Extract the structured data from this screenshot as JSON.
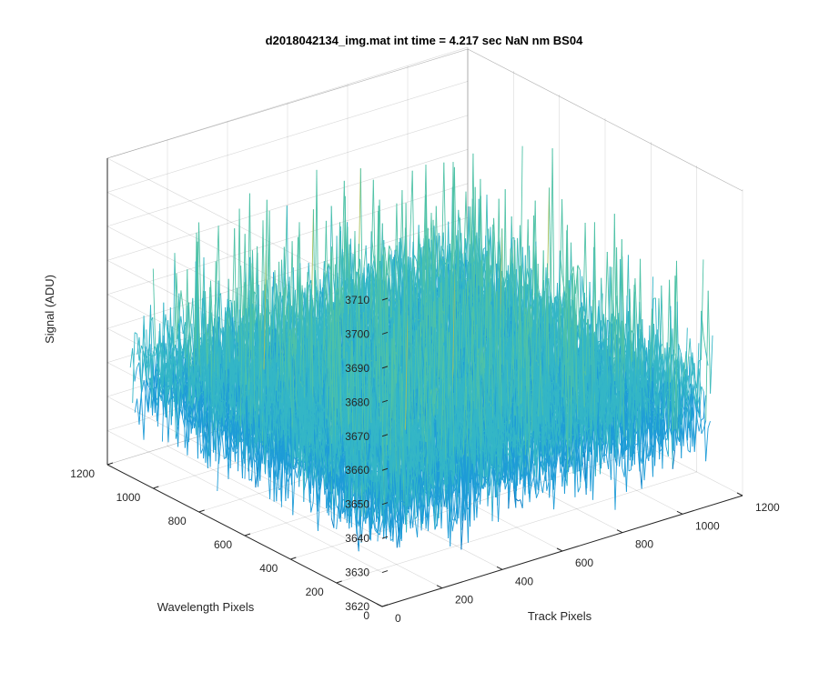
{
  "chart_data": {
    "type": "surface3d",
    "title": "d2018042134_img.mat int time = 4.217 sec  NaN nm BS04",
    "xlabel": "Track Pixels",
    "ylabel": "Wavelength Pixels",
    "zlabel": "Signal (ADU)",
    "xlim": [
      0,
      1200
    ],
    "ylim": [
      0,
      1200
    ],
    "zlim": [
      3620,
      3710
    ],
    "x_ticks": [
      "0",
      "200",
      "400",
      "600",
      "800",
      "1000",
      "1200"
    ],
    "y_ticks": [
      "0",
      "200",
      "400",
      "600",
      "800",
      "1000",
      "1200"
    ],
    "z_ticks": [
      "3620",
      "3630",
      "3640",
      "3650",
      "3660",
      "3670",
      "3680",
      "3690",
      "3700",
      "3710"
    ],
    "data_extent": {
      "x": [
        0,
        1100
      ],
      "y": [
        0,
        1100
      ]
    },
    "signal_mean": 3650,
    "signal_range": [
      3622,
      3705
    ],
    "grid": true,
    "colormap": [
      "#0072BD",
      "#1E9CD7",
      "#34B6C6",
      "#4FC2A6",
      "#A5C05A",
      "#E5B830"
    ]
  }
}
